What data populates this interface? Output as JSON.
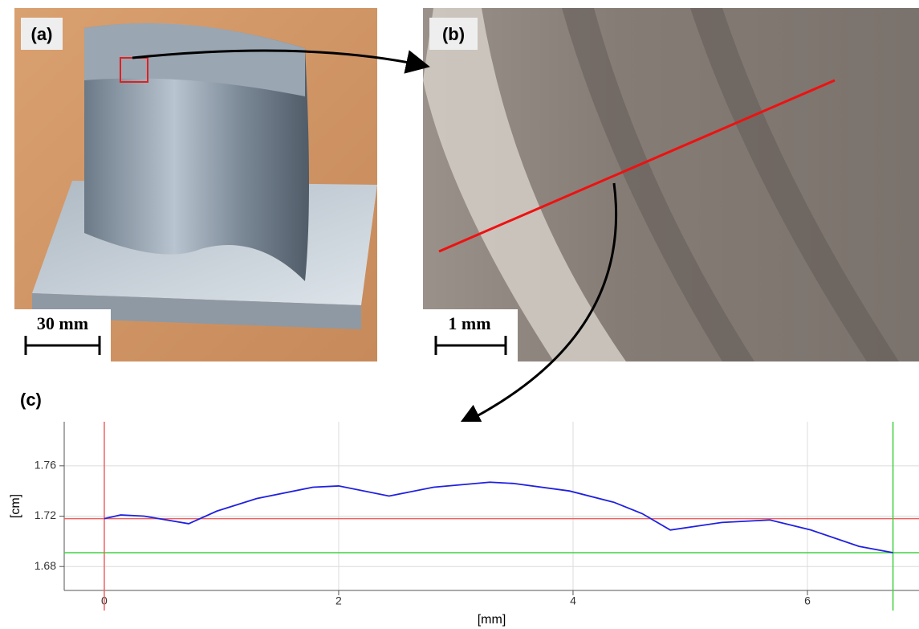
{
  "panels": {
    "a": {
      "label": "(a)",
      "scale_bar": "30 mm"
    },
    "b": {
      "label": "(b)",
      "scale_bar": "1 mm"
    },
    "c": {
      "label": "(c)"
    }
  },
  "chart_data": {
    "type": "line",
    "x_label": "[mm]",
    "y_label": "[cm]",
    "xlim": [
      -0.342,
      6.952
    ],
    "ylim": [
      1.661,
      1.795
    ],
    "xticks": [
      0,
      2,
      4,
      6
    ],
    "yticks": [
      1.68,
      1.72,
      1.76
    ],
    "grid": true,
    "series": [
      {
        "color": "#2020e0",
        "x": [
          0,
          0.14,
          0.34,
          0.72,
          0.96,
          1.3,
          1.78,
          2.0,
          2.43,
          2.81,
          3.29,
          3.49,
          3.97,
          4.35,
          4.59,
          4.83,
          5.27,
          5.68,
          6.03,
          6.44,
          6.73
        ],
        "values": [
          1.718,
          1.721,
          1.72,
          1.714,
          1.724,
          1.734,
          1.743,
          1.744,
          1.736,
          1.743,
          1.747,
          1.746,
          1.74,
          1.731,
          1.722,
          1.709,
          1.715,
          1.717,
          1.709,
          1.696,
          1.691
        ]
      }
    ],
    "vlines": [
      {
        "value": 0,
        "color": "#f06060"
      },
      {
        "value": 6.73,
        "color": "#40d040"
      }
    ],
    "hlines": [
      {
        "value": 1.718,
        "color": "#f06060"
      },
      {
        "value": 1.691,
        "color": "#40d040"
      }
    ]
  }
}
